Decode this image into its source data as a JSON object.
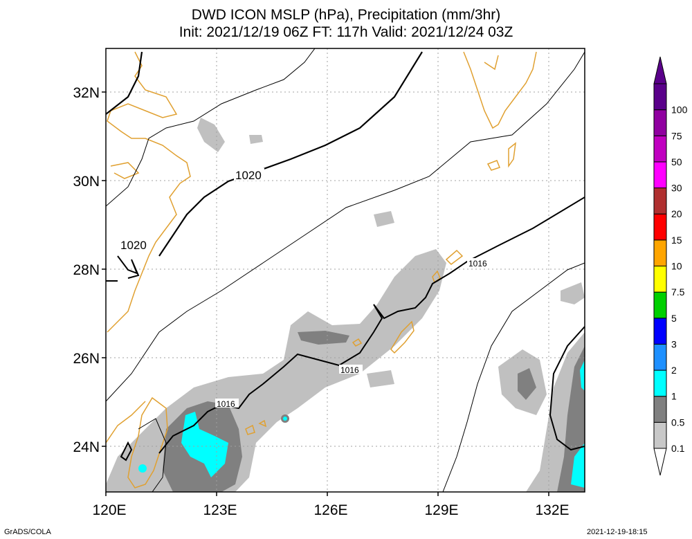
{
  "title_line1": "DWD ICON MSLP (hPa), Precipitation (mm/3hr)",
  "title_line2": "Init: 2021/12/19 06Z  FT: 117h  Valid: 2021/12/24 03Z",
  "footer_left": "GrADS/COLA",
  "footer_right": "2021-12-19-18:15",
  "lat_labels": [
    "32N",
    "30N",
    "28N",
    "26N",
    "24N"
  ],
  "lon_labels": [
    "120E",
    "123E",
    "126E",
    "129E",
    "132E"
  ],
  "isobar_labels": [
    "1020",
    "1020",
    "1016",
    "1016",
    "1016"
  ],
  "colorbar_labels": [
    "100",
    "75",
    "50",
    "30",
    "20",
    "15",
    "10",
    "7.5",
    "5",
    "3",
    "2",
    "1",
    "0.5",
    "0.1"
  ],
  "colors": {
    "coast": "#e0a030",
    "precip_light": "#c0c0c0",
    "precip_mid": "#808080",
    "precip_cyan": "#00ffff",
    "grid": "#a0a0a0"
  },
  "colorbar_colors": [
    "#c8c8c8",
    "#808080",
    "#00ffff",
    "#1e90ff",
    "#0000ff",
    "#00d000",
    "#ffff00",
    "#ffa500",
    "#ff0000",
    "#b03030",
    "#ff00ff",
    "#c000c0",
    "#9000a0",
    "#5a008a"
  ]
}
